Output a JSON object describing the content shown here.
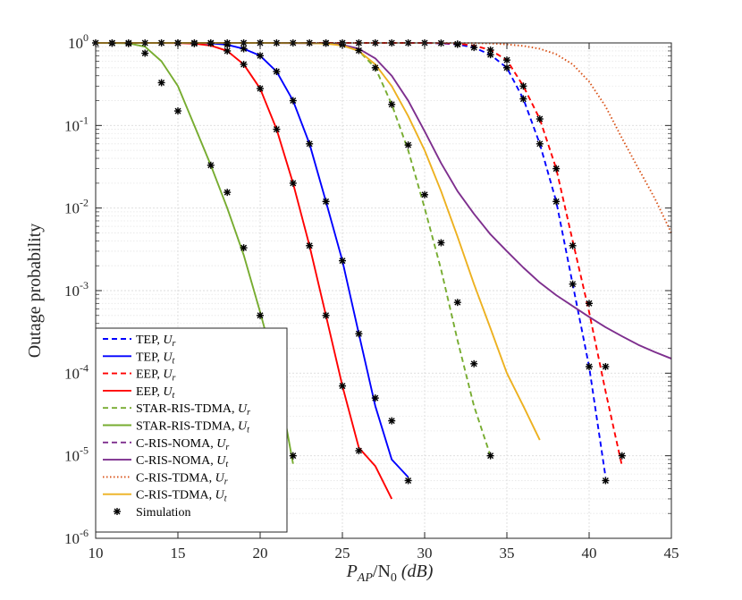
{
  "chart_data": {
    "type": "line",
    "x_scale": "linear",
    "y_scale": "log",
    "xlim": [
      10,
      45
    ],
    "ylim": [
      1e-06,
      1
    ],
    "grid": true,
    "legend_position": "bottom-left",
    "xlabel": {
      "main": "P",
      "sub1": "AP",
      "mid": "/N",
      "sub2": "0",
      "tail": " (dB)"
    },
    "ylabel": "Outage probability",
    "x_ticks": [
      {
        "value": 10,
        "label": "10"
      },
      {
        "value": 15,
        "label": "15"
      },
      {
        "value": 20,
        "label": "20"
      },
      {
        "value": 25,
        "label": "25"
      },
      {
        "value": 30,
        "label": "30"
      },
      {
        "value": 35,
        "label": "35"
      },
      {
        "value": 40,
        "label": "40"
      },
      {
        "value": 45,
        "label": "45"
      }
    ],
    "y_ticks": [
      {
        "value": 1,
        "base": "10",
        "exp": "0"
      },
      {
        "value": 0.1,
        "base": "10",
        "exp": "-1"
      },
      {
        "value": 0.01,
        "base": "10",
        "exp": "-2"
      },
      {
        "value": 0.001,
        "base": "10",
        "exp": "-3"
      },
      {
        "value": 0.0001,
        "base": "10",
        "exp": "-4"
      },
      {
        "value": 1e-05,
        "base": "10",
        "exp": "-5"
      },
      {
        "value": 1e-06,
        "base": "10",
        "exp": "-6"
      }
    ],
    "series": [
      {
        "name": "TEP, U_r",
        "label": "TEP, ",
        "sym": "U",
        "sub": "r",
        "color": "#0000ff",
        "dash": "dashed",
        "marker": "",
        "x": [
          10,
          18,
          26,
          28,
          29,
          30,
          31,
          32,
          33,
          34,
          35,
          36,
          37,
          38,
          39,
          40,
          41
        ],
        "y": [
          1,
          1,
          1,
          1,
          1,
          0.998,
          0.99,
          0.96,
          0.88,
          0.72,
          0.5,
          0.21,
          0.06,
          0.012,
          0.0012,
          0.00012,
          5.5e-06
        ]
      },
      {
        "name": "TEP, U_t",
        "label": "TEP, ",
        "sym": "U",
        "sub": "t",
        "color": "#0000ff",
        "dash": "solid",
        "marker": "",
        "x": [
          10,
          14,
          16,
          17,
          18,
          19,
          20,
          21,
          22,
          23,
          24,
          25,
          26,
          27,
          28,
          29
        ],
        "y": [
          1,
          1,
          0.998,
          0.99,
          0.95,
          0.85,
          0.7,
          0.45,
          0.2,
          0.06,
          0.012,
          0.0023,
          0.0003,
          4e-05,
          9e-06,
          5.5e-06
        ]
      },
      {
        "name": "EEP, U_r",
        "label": "EEP, ",
        "sym": "U",
        "sub": "r",
        "color": "#ff0000",
        "dash": "dashed",
        "marker": "",
        "x": [
          10,
          18,
          26,
          29,
          30,
          31,
          32,
          33,
          34,
          35,
          36,
          37,
          38,
          39,
          40,
          41,
          42
        ],
        "y": [
          1,
          1,
          1,
          1,
          0.999,
          0.995,
          0.98,
          0.93,
          0.82,
          0.62,
          0.3,
          0.12,
          0.03,
          0.004,
          0.00055,
          6e-05,
          7.5e-06
        ]
      },
      {
        "name": "EEP, U_t",
        "label": "EEP, ",
        "sym": "U",
        "sub": "t",
        "color": "#ff0000",
        "dash": "solid",
        "marker": "",
        "x": [
          10,
          13,
          15,
          16,
          17,
          18,
          19,
          20,
          21,
          22,
          23,
          24,
          25,
          26,
          27,
          28
        ],
        "y": [
          1,
          1,
          0.995,
          0.98,
          0.93,
          0.8,
          0.55,
          0.28,
          0.09,
          0.02,
          0.0035,
          0.0005,
          7e-05,
          1.25e-05,
          7.5e-06,
          3e-06
        ]
      },
      {
        "name": "STAR-RIS-TDMA, U_r",
        "label": "STAR-RIS-TDMA, ",
        "sym": "U",
        "sub": "r",
        "color": "#77ac30",
        "dash": "dashed",
        "marker": "",
        "x": [
          10,
          18,
          22,
          24,
          25,
          26,
          27,
          28,
          29,
          30,
          31,
          32,
          33,
          34
        ],
        "y": [
          1,
          1,
          1,
          0.99,
          0.95,
          0.8,
          0.5,
          0.18,
          0.05,
          0.01,
          0.0018,
          0.00025,
          4e-05,
          1e-05
        ]
      },
      {
        "name": "STAR-RIS-TDMA, U_t",
        "label": "STAR-RIS-TDMA, ",
        "sym": "U",
        "sub": "t",
        "color": "#77ac30",
        "dash": "solid",
        "marker": "",
        "x": [
          10,
          12,
          13,
          14,
          15,
          16,
          17,
          18,
          19,
          20,
          21,
          22
        ],
        "y": [
          1,
          0.99,
          0.9,
          0.6,
          0.3,
          0.1,
          0.033,
          0.01,
          0.0027,
          0.00055,
          0.0001,
          8e-06
        ]
      },
      {
        "name": "C-RIS-NOMA, U_r",
        "label": "C-RIS-NOMA, ",
        "sym": "U",
        "sub": "r",
        "color": "#7e2f8e",
        "dash": "dashed",
        "marker": "",
        "x": [],
        "y": []
      },
      {
        "name": "C-RIS-NOMA, U_t",
        "label": "C-RIS-NOMA, ",
        "sym": "U",
        "sub": "t",
        "color": "#7e2f8e",
        "dash": "solid",
        "marker": "",
        "x": [
          10,
          20,
          24,
          25,
          26,
          27,
          28,
          29,
          30,
          31,
          32,
          33,
          34,
          35,
          36,
          37,
          38,
          39,
          40,
          41,
          42,
          43,
          44,
          45
        ],
        "y": [
          1,
          1,
          0.99,
          0.95,
          0.85,
          0.65,
          0.4,
          0.2,
          0.085,
          0.035,
          0.016,
          0.0085,
          0.0048,
          0.003,
          0.0019,
          0.00125,
          0.00088,
          0.00065,
          0.00048,
          0.00036,
          0.00028,
          0.00022,
          0.00018,
          0.00015
        ]
      },
      {
        "name": "C-RIS-TDMA, U_r",
        "label": "C-RIS-TDMA, ",
        "sym": "U",
        "sub": "r",
        "color": "#d95319",
        "dash": "dotted",
        "marker": "",
        "x": [
          10,
          30,
          33,
          34,
          35,
          36,
          37,
          38,
          39,
          40,
          41,
          42,
          43,
          44,
          45
        ],
        "y": [
          1,
          1,
          0.995,
          0.985,
          0.96,
          0.92,
          0.85,
          0.73,
          0.55,
          0.34,
          0.17,
          0.07,
          0.03,
          0.013,
          0.005
        ]
      },
      {
        "name": "C-RIS-TDMA, U_t",
        "label": "C-RIS-TDMA, ",
        "sym": "U",
        "sub": "t",
        "color": "#edb120",
        "dash": "solid",
        "marker": "",
        "x": [
          10,
          20,
          23,
          24,
          25,
          26,
          27,
          28,
          29,
          30,
          31,
          32,
          33,
          34,
          35,
          36,
          37
        ],
        "y": [
          1,
          1,
          0.995,
          0.98,
          0.93,
          0.8,
          0.55,
          0.3,
          0.13,
          0.05,
          0.016,
          0.0045,
          0.0012,
          0.00035,
          0.0001,
          4e-05,
          1.55e-05
        ]
      }
    ],
    "simulation": {
      "name": "Simulation",
      "label": "Simulation",
      "color": "#000000",
      "marker": "asterisk",
      "points": [
        [
          10,
          1
        ],
        [
          11,
          1
        ],
        [
          12,
          1
        ],
        [
          13,
          1
        ],
        [
          14,
          1
        ],
        [
          15,
          1
        ],
        [
          16,
          1
        ],
        [
          17,
          1
        ],
        [
          18,
          1
        ],
        [
          19,
          1
        ],
        [
          20,
          1
        ],
        [
          21,
          1
        ],
        [
          22,
          1
        ],
        [
          23,
          1
        ],
        [
          24,
          1
        ],
        [
          25,
          1
        ],
        [
          26,
          1
        ],
        [
          27,
          1
        ],
        [
          28,
          1
        ],
        [
          29,
          1
        ],
        [
          30,
          1
        ],
        [
          31,
          0.995
        ],
        [
          32,
          0.96
        ],
        [
          33,
          0.88
        ],
        [
          34,
          0.72
        ],
        [
          35,
          0.5
        ],
        [
          36,
          0.21
        ],
        [
          37,
          0.06
        ],
        [
          38,
          0.012
        ],
        [
          39,
          0.0012
        ],
        [
          40,
          0.00012
        ],
        [
          41,
          5e-06
        ],
        [
          32,
          0.97
        ],
        [
          34,
          0.82
        ],
        [
          35,
          0.62
        ],
        [
          36,
          0.3
        ],
        [
          37,
          0.12
        ],
        [
          38,
          0.03
        ],
        [
          39,
          0.0035
        ],
        [
          40,
          0.0007
        ],
        [
          41,
          0.00012
        ],
        [
          42,
          1e-05
        ],
        [
          17,
          0.99
        ],
        [
          18,
          0.95
        ],
        [
          19,
          0.85
        ],
        [
          20,
          0.7
        ],
        [
          21,
          0.45
        ],
        [
          22,
          0.2
        ],
        [
          23,
          0.06
        ],
        [
          24,
          0.012
        ],
        [
          25,
          0.0023
        ],
        [
          26,
          0.0003
        ],
        [
          27,
          5e-05
        ],
        [
          28,
          2.65e-05
        ],
        [
          29,
          5e-06
        ],
        [
          15,
          0.995
        ],
        [
          16,
          0.98
        ],
        [
          18,
          0.8
        ],
        [
          19,
          0.55
        ],
        [
          20,
          0.28
        ],
        [
          21,
          0.09
        ],
        [
          22,
          0.02
        ],
        [
          23,
          0.0035
        ],
        [
          24,
          0.0005
        ],
        [
          25,
          7e-05
        ],
        [
          26,
          1.15e-05
        ],
        [
          11,
          0.99
        ],
        [
          12,
          0.98
        ],
        [
          13,
          0.75
        ],
        [
          14,
          0.33
        ],
        [
          15,
          0.15
        ],
        [
          17,
          0.033
        ],
        [
          18,
          0.0155
        ],
        [
          19,
          0.0033
        ],
        [
          20,
          0.0005
        ],
        [
          22,
          1e-05
        ],
        [
          24,
          0.99
        ],
        [
          25,
          0.95
        ],
        [
          26,
          0.81
        ],
        [
          27,
          0.5
        ],
        [
          28,
          0.18
        ],
        [
          29,
          0.058
        ],
        [
          30,
          0.0145
        ],
        [
          31,
          0.0038
        ],
        [
          32,
          0.00072
        ],
        [
          33,
          0.00013
        ],
        [
          34,
          1e-05
        ]
      ]
    }
  }
}
